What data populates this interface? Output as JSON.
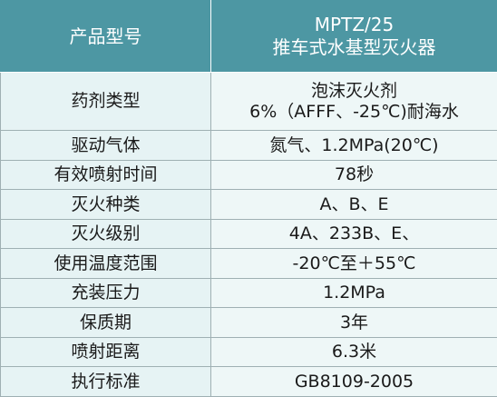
{
  "header": {
    "label": "产品型号",
    "value_lines": [
      "MPTZ/25",
      "推车式水基型灭火器"
    ]
  },
  "rows": [
    {
      "label": "药剂类型",
      "value_lines": [
        "泡沫灭火剂",
        "6%（AFFF、-25℃)耐海水"
      ]
    },
    {
      "label": "驱动气体",
      "value_lines": [
        "氮气、1.2MPa(20℃)"
      ]
    },
    {
      "label": "有效喷射时间",
      "value_lines": [
        "78秒"
      ]
    },
    {
      "label": "灭火种类",
      "value_lines": [
        "A、B、E"
      ]
    },
    {
      "label": "灭火级别",
      "value_lines": [
        "4A、233B、E、"
      ]
    },
    {
      "label": "使用温度范围",
      "value_lines": [
        "-20℃至＋55℃"
      ]
    },
    {
      "label": "充装压力",
      "value_lines": [
        "1.2MPa"
      ]
    },
    {
      "label": "保质期",
      "value_lines": [
        "3年"
      ]
    },
    {
      "label": "喷射距离",
      "value_lines": [
        "6.3米"
      ]
    },
    {
      "label": "执行标准",
      "value_lines": [
        "GB8109-2005"
      ]
    }
  ]
}
